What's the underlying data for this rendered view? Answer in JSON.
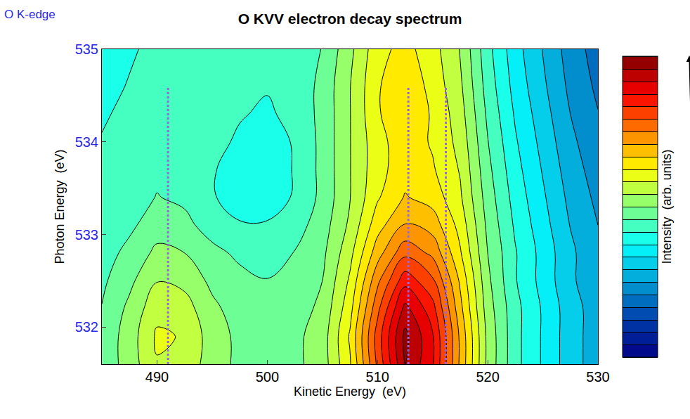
{
  "chart_data": {
    "type": "contour",
    "title": "O KVV electron decay spectrum",
    "annotations": [
      "O K-edge"
    ],
    "x_label": "Kinetic Energy  (eV)",
    "y_label": "Photon Energy  (eV)",
    "colorbar_label": "Intensity  (arb. units)",
    "xlim": [
      485,
      530
    ],
    "xticks": [
      490,
      500,
      510,
      520,
      530
    ],
    "ylim": [
      531.6,
      535
    ],
    "yticks": [
      532,
      533,
      534,
      535
    ],
    "color_range": [
      0,
      1
    ],
    "x": [
      485,
      487.5,
      490,
      492.5,
      495,
      497.5,
      500,
      502.5,
      505,
      507.5,
      510,
      512.5,
      515,
      517.5,
      520,
      522.5,
      525,
      527.5,
      530
    ],
    "y": [
      531.6,
      531.9,
      532.2,
      532.5,
      532.8,
      533.1,
      533.4,
      533.7,
      534.0,
      534.3,
      534.6,
      535.0
    ],
    "z": [
      [
        0.47,
        0.52,
        0.58,
        0.57,
        0.52,
        0.49,
        0.48,
        0.49,
        0.52,
        0.62,
        0.8,
        0.96,
        0.88,
        0.7,
        0.53,
        0.43,
        0.37,
        0.31,
        0.27
      ],
      [
        0.47,
        0.52,
        0.59,
        0.58,
        0.52,
        0.49,
        0.48,
        0.49,
        0.52,
        0.63,
        0.81,
        0.97,
        0.88,
        0.7,
        0.53,
        0.43,
        0.37,
        0.31,
        0.27
      ],
      [
        0.46,
        0.51,
        0.57,
        0.56,
        0.51,
        0.48,
        0.47,
        0.48,
        0.51,
        0.61,
        0.78,
        0.93,
        0.85,
        0.68,
        0.52,
        0.43,
        0.37,
        0.31,
        0.27
      ],
      [
        0.45,
        0.49,
        0.54,
        0.53,
        0.49,
        0.47,
        0.46,
        0.47,
        0.5,
        0.59,
        0.74,
        0.86,
        0.8,
        0.66,
        0.51,
        0.42,
        0.36,
        0.3,
        0.26
      ],
      [
        0.44,
        0.47,
        0.51,
        0.5,
        0.47,
        0.45,
        0.44,
        0.46,
        0.49,
        0.57,
        0.69,
        0.78,
        0.74,
        0.63,
        0.5,
        0.42,
        0.36,
        0.3,
        0.26
      ],
      [
        0.43,
        0.45,
        0.48,
        0.47,
        0.44,
        0.42,
        0.42,
        0.44,
        0.48,
        0.55,
        0.65,
        0.71,
        0.69,
        0.61,
        0.49,
        0.41,
        0.35,
        0.29,
        0.25
      ],
      [
        0.43,
        0.44,
        0.46,
        0.45,
        0.42,
        0.4,
        0.4,
        0.42,
        0.47,
        0.54,
        0.62,
        0.67,
        0.65,
        0.59,
        0.48,
        0.4,
        0.34,
        0.28,
        0.24
      ],
      [
        0.43,
        0.44,
        0.45,
        0.44,
        0.42,
        0.4,
        0.39,
        0.42,
        0.47,
        0.54,
        0.61,
        0.65,
        0.63,
        0.58,
        0.47,
        0.39,
        0.33,
        0.27,
        0.23
      ],
      [
        0.42,
        0.44,
        0.45,
        0.45,
        0.43,
        0.41,
        0.4,
        0.42,
        0.47,
        0.54,
        0.61,
        0.65,
        0.62,
        0.57,
        0.46,
        0.38,
        0.32,
        0.26,
        0.22
      ],
      [
        0.41,
        0.43,
        0.45,
        0.45,
        0.44,
        0.42,
        0.41,
        0.43,
        0.47,
        0.54,
        0.62,
        0.66,
        0.62,
        0.56,
        0.45,
        0.37,
        0.31,
        0.25,
        0.21
      ],
      [
        0.4,
        0.42,
        0.44,
        0.45,
        0.44,
        0.43,
        0.42,
        0.43,
        0.47,
        0.54,
        0.62,
        0.66,
        0.61,
        0.55,
        0.44,
        0.36,
        0.3,
        0.24,
        0.2
      ],
      [
        0.39,
        0.41,
        0.43,
        0.44,
        0.44,
        0.43,
        0.42,
        0.43,
        0.46,
        0.53,
        0.61,
        0.64,
        0.6,
        0.54,
        0.43,
        0.35,
        0.29,
        0.23,
        0.19
      ]
    ],
    "dashed_lines": {
      "x": [
        491,
        512.8,
        516.2
      ],
      "y": [
        531.6,
        534.6
      ],
      "color": "#9966dd"
    }
  }
}
